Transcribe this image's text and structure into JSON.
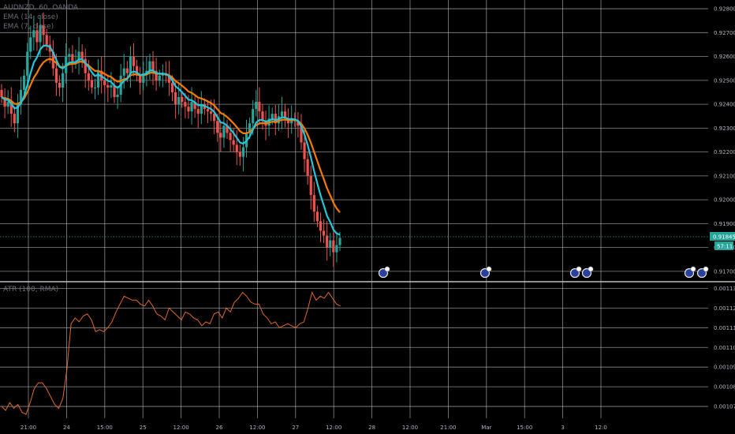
{
  "legend": {
    "symbol_line": "AUDNZD, 60, OANDA",
    "ema1": "EMA (14, close)",
    "ema2": "EMA (7, close)",
    "atr": "ATR (100, RMA)"
  },
  "colors": {
    "up": "#26a69a",
    "down": "#ef5350",
    "ema_fast": "#26c6da",
    "ema_slow": "#f57c00",
    "atr": "#e0692b",
    "grid": "#b8b8b8",
    "last_price_bg": "#26a69a"
  },
  "chart_data": [
    {
      "type": "candlestick",
      "ylim": [
        0.9166,
        0.9283
      ],
      "y_ticks": [
        "0.92800",
        "0.92700",
        "0.92600",
        "0.92500",
        "0.92400",
        "0.92300",
        "0.92200",
        "0.92100",
        "0.92000",
        "0.91900",
        "0.91800",
        "0.91700"
      ],
      "last_price": "0.91845",
      "countdown": "57:11",
      "x_ticks": [
        "21:00",
        "24",
        "15:00",
        "25",
        "12:00",
        "26",
        "12:00",
        "27",
        "12:00",
        "28",
        "12:00",
        "21:00",
        "Mar",
        "15:00",
        "3",
        "12:0"
      ],
      "closes": [
        0.9243,
        0.9239,
        0.9241,
        0.9236,
        0.9232,
        0.924,
        0.9246,
        0.9252,
        0.9262,
        0.9268,
        0.9271,
        0.9266,
        0.9273,
        0.9269,
        0.9265,
        0.9262,
        0.9255,
        0.9249,
        0.9247,
        0.9253,
        0.926,
        0.9261,
        0.9258,
        0.9258,
        0.9262,
        0.9259,
        0.9253,
        0.925,
        0.9247,
        0.9247,
        0.9254,
        0.925,
        0.9248,
        0.9247,
        0.9248,
        0.9243,
        0.9244,
        0.9252,
        0.9255,
        0.9253,
        0.926,
        0.9256,
        0.9252,
        0.9249,
        0.9253,
        0.9254,
        0.9258,
        0.9254,
        0.925,
        0.9252,
        0.9253,
        0.9252,
        0.9249,
        0.9245,
        0.924,
        0.9243,
        0.9241,
        0.9239,
        0.9237,
        0.9241,
        0.9238,
        0.9236,
        0.924,
        0.9238,
        0.9237,
        0.9236,
        0.9233,
        0.9228,
        0.9226,
        0.9231,
        0.9228,
        0.9225,
        0.9223,
        0.922,
        0.9218,
        0.9222,
        0.9228,
        0.9232,
        0.9238,
        0.9241,
        0.9237,
        0.9233,
        0.9231,
        0.9234,
        0.9236,
        0.9232,
        0.9235,
        0.9237,
        0.9234,
        0.9232,
        0.9234,
        0.9233,
        0.9231,
        0.9224,
        0.9217,
        0.921,
        0.9202,
        0.9195,
        0.9191,
        0.9187,
        0.9185,
        0.918,
        0.9183,
        0.9178,
        0.9181,
        0.9184
      ],
      "ema_fast_label": "EMA (7, close)",
      "ema_slow_label": "EMA (14, close)"
    },
    {
      "type": "line",
      "title": "ATR (100, RMA)",
      "ylim": [
        0.001064,
        0.001133
      ],
      "y_ticks": [
        "0.00113",
        "0.00112",
        "0.00111",
        "0.00110",
        "0.00109",
        "0.00108",
        "0.00107"
      ],
      "values": [
        0.00107,
        0.001068,
        0.001072,
        0.001069,
        0.001071,
        0.001067,
        0.001066,
        0.001072,
        0.001079,
        0.001082,
        0.001082,
        0.001079,
        0.001075,
        0.001071,
        0.001069,
        0.001074,
        0.001089,
        0.001112,
        0.001115,
        0.001113,
        0.001116,
        0.001117,
        0.001114,
        0.001108,
        0.001109,
        0.001108,
        0.00111,
        0.001113,
        0.001118,
        0.001122,
        0.001126,
        0.001125,
        0.001124,
        0.001124,
        0.001122,
        0.001121,
        0.001124,
        0.001121,
        0.001117,
        0.001116,
        0.001114,
        0.00112,
        0.001118,
        0.001116,
        0.001114,
        0.001118,
        0.001117,
        0.001115,
        0.001114,
        0.001111,
        0.001113,
        0.001112,
        0.001117,
        0.001118,
        0.001115,
        0.00112,
        0.001118,
        0.001123,
        0.001125,
        0.001128,
        0.001126,
        0.001123,
        0.001122,
        0.001122,
        0.001117,
        0.001115,
        0.001112,
        0.001113,
        0.00111,
        0.001111,
        0.001112,
        0.001111,
        0.00111,
        0.001112,
        0.001113,
        0.00112,
        0.001128,
        0.001124,
        0.001126,
        0.001125,
        0.001128,
        0.001125,
        0.001122,
        0.001121
      ]
    }
  ]
}
